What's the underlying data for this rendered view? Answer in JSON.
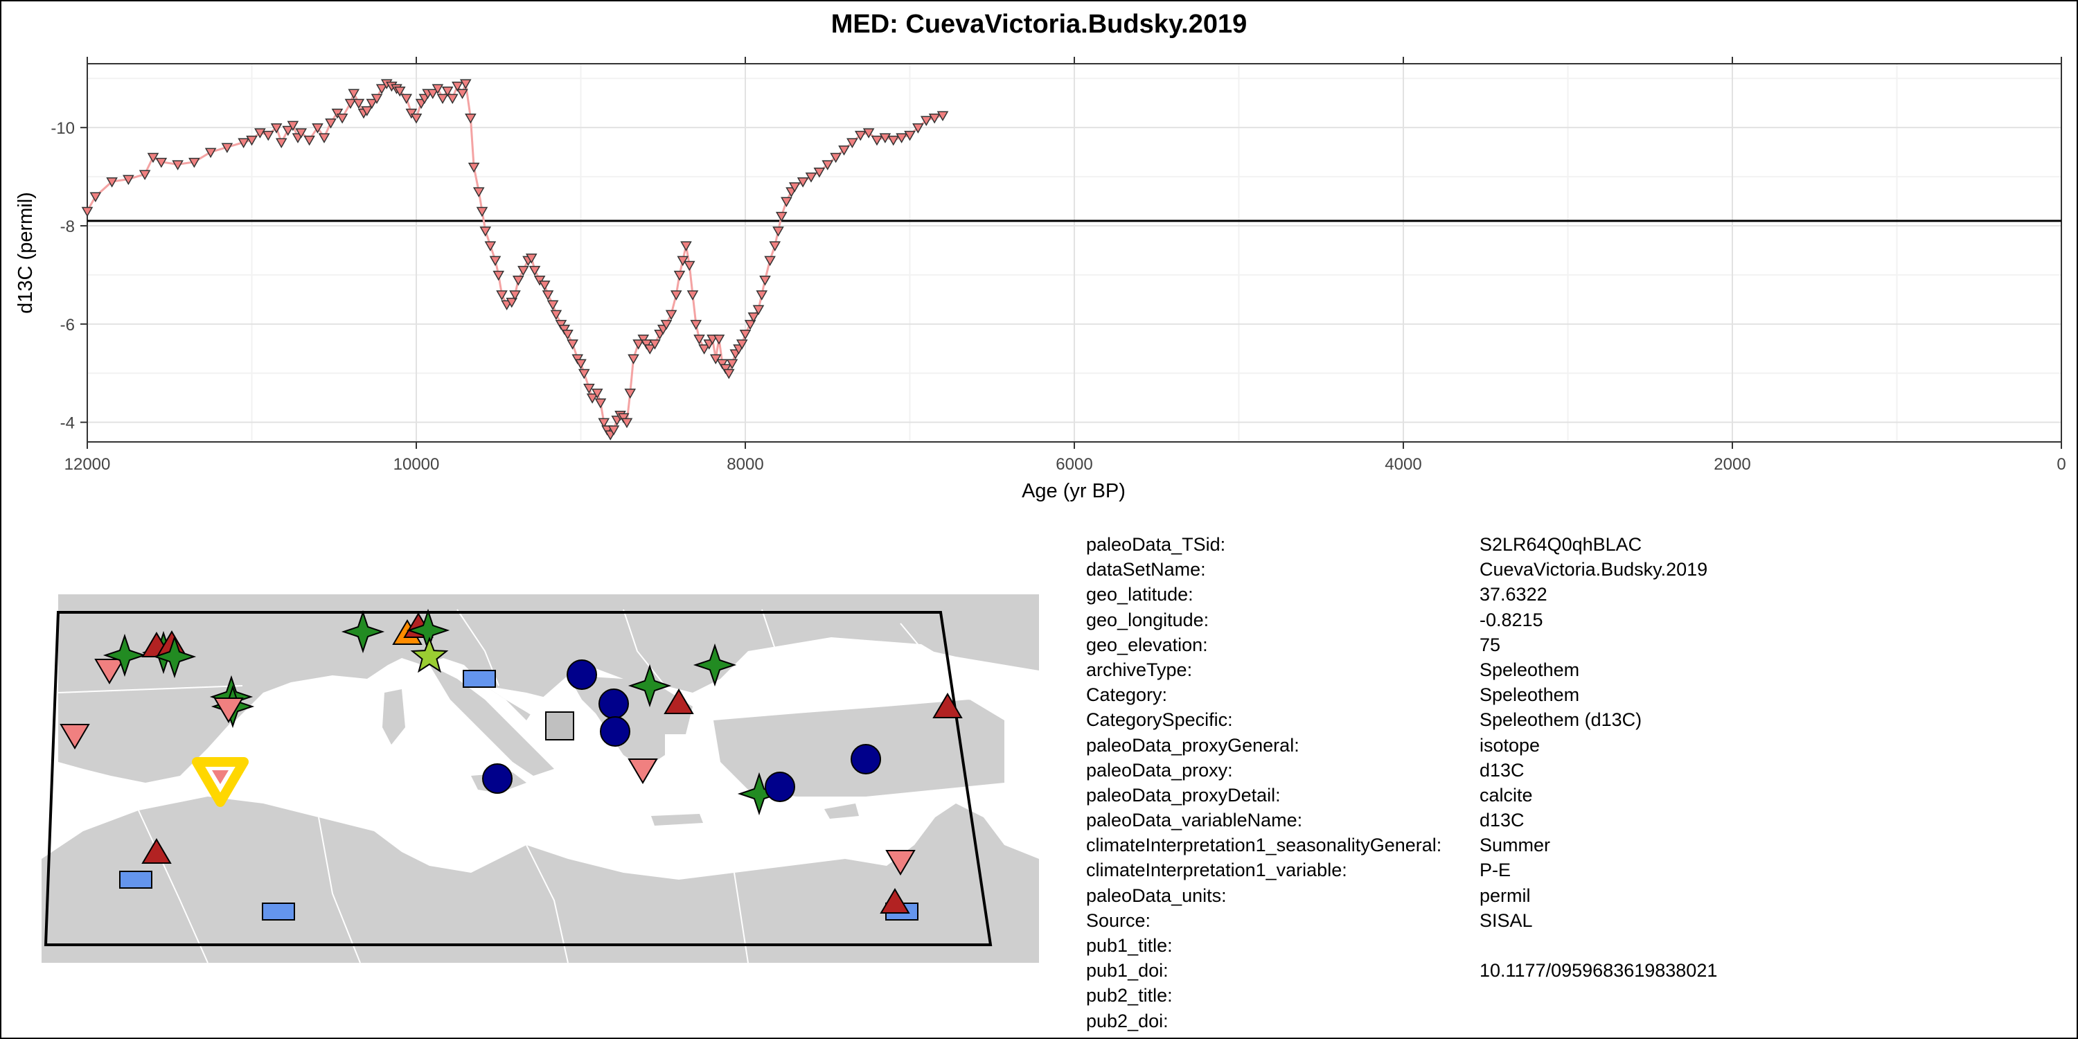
{
  "chart_data": {
    "type": "line",
    "title": "MED: CuevaVictoria.Budsky.2019",
    "xlabel": "Age (yr BP)",
    "ylabel": "d13C (permil)",
    "xlim": [
      12000,
      0
    ],
    "ylim": [
      -3.6,
      -11.3
    ],
    "reversed_y": true,
    "x_ticks": [
      12000,
      10000,
      8000,
      6000,
      4000,
      2000,
      0
    ],
    "y_ticks": [
      -4,
      -6,
      -8,
      -10
    ],
    "reference_line_y": -8.1,
    "series": [
      {
        "color": "#f4a3a3",
        "marker": "triangle-down",
        "marker_fill": "#f08080",
        "points": [
          [
            12000,
            -8.3
          ],
          [
            11950,
            -8.6
          ],
          [
            11850,
            -8.9
          ],
          [
            11750,
            -8.95
          ],
          [
            11650,
            -9.05
          ],
          [
            11600,
            -9.4
          ],
          [
            11550,
            -9.3
          ],
          [
            11450,
            -9.25
          ],
          [
            11350,
            -9.3
          ],
          [
            11250,
            -9.5
          ],
          [
            11150,
            -9.6
          ],
          [
            11050,
            -9.7
          ],
          [
            11000,
            -9.75
          ],
          [
            10950,
            -9.9
          ],
          [
            10900,
            -9.85
          ],
          [
            10850,
            -10.0
          ],
          [
            10820,
            -9.7
          ],
          [
            10780,
            -9.95
          ],
          [
            10750,
            -10.05
          ],
          [
            10720,
            -9.8
          ],
          [
            10700,
            -9.9
          ],
          [
            10650,
            -9.75
          ],
          [
            10600,
            -10.0
          ],
          [
            10560,
            -9.8
          ],
          [
            10520,
            -10.1
          ],
          [
            10480,
            -10.3
          ],
          [
            10450,
            -10.2
          ],
          [
            10400,
            -10.5
          ],
          [
            10380,
            -10.7
          ],
          [
            10350,
            -10.5
          ],
          [
            10320,
            -10.3
          ],
          [
            10300,
            -10.35
          ],
          [
            10270,
            -10.5
          ],
          [
            10240,
            -10.6
          ],
          [
            10210,
            -10.8
          ],
          [
            10180,
            -10.9
          ],
          [
            10150,
            -10.85
          ],
          [
            10120,
            -10.8
          ],
          [
            10100,
            -10.75
          ],
          [
            10060,
            -10.6
          ],
          [
            10030,
            -10.3
          ],
          [
            10000,
            -10.2
          ],
          [
            9970,
            -10.5
          ],
          [
            9950,
            -10.6
          ],
          [
            9930,
            -10.7
          ],
          [
            9900,
            -10.7
          ],
          [
            9870,
            -10.8
          ],
          [
            9840,
            -10.6
          ],
          [
            9810,
            -10.75
          ],
          [
            9780,
            -10.6
          ],
          [
            9750,
            -10.85
          ],
          [
            9720,
            -10.7
          ],
          [
            9700,
            -10.9
          ],
          [
            9670,
            -10.2
          ],
          [
            9650,
            -9.2
          ],
          [
            9620,
            -8.7
          ],
          [
            9600,
            -8.3
          ],
          [
            9580,
            -7.9
          ],
          [
            9550,
            -7.6
          ],
          [
            9520,
            -7.3
          ],
          [
            9500,
            -7.0
          ],
          [
            9480,
            -6.6
          ],
          [
            9450,
            -6.4
          ],
          [
            9420,
            -6.45
          ],
          [
            9400,
            -6.6
          ],
          [
            9380,
            -6.9
          ],
          [
            9350,
            -7.1
          ],
          [
            9320,
            -7.3
          ],
          [
            9300,
            -7.35
          ],
          [
            9280,
            -7.1
          ],
          [
            9250,
            -6.9
          ],
          [
            9220,
            -6.8
          ],
          [
            9200,
            -6.6
          ],
          [
            9170,
            -6.4
          ],
          [
            9150,
            -6.2
          ],
          [
            9120,
            -6.0
          ],
          [
            9100,
            -5.9
          ],
          [
            9080,
            -5.8
          ],
          [
            9050,
            -5.6
          ],
          [
            9020,
            -5.3
          ],
          [
            9000,
            -5.2
          ],
          [
            8980,
            -5.0
          ],
          [
            8950,
            -4.7
          ],
          [
            8930,
            -4.5
          ],
          [
            8900,
            -4.6
          ],
          [
            8880,
            -4.4
          ],
          [
            8860,
            -4.0
          ],
          [
            8840,
            -3.85
          ],
          [
            8820,
            -3.75
          ],
          [
            8800,
            -3.85
          ],
          [
            8780,
            -4.05
          ],
          [
            8760,
            -4.15
          ],
          [
            8740,
            -4.1
          ],
          [
            8720,
            -4.0
          ],
          [
            8700,
            -4.6
          ],
          [
            8680,
            -5.3
          ],
          [
            8650,
            -5.6
          ],
          [
            8620,
            -5.7
          ],
          [
            8600,
            -5.6
          ],
          [
            8580,
            -5.5
          ],
          [
            8550,
            -5.6
          ],
          [
            8520,
            -5.8
          ],
          [
            8500,
            -5.9
          ],
          [
            8480,
            -6.0
          ],
          [
            8450,
            -6.2
          ],
          [
            8420,
            -6.6
          ],
          [
            8400,
            -7.0
          ],
          [
            8380,
            -7.3
          ],
          [
            8360,
            -7.6
          ],
          [
            8340,
            -7.2
          ],
          [
            8320,
            -6.6
          ],
          [
            8300,
            -6.0
          ],
          [
            8280,
            -5.7
          ],
          [
            8250,
            -5.5
          ],
          [
            8220,
            -5.6
          ],
          [
            8200,
            -5.7
          ],
          [
            8180,
            -5.3
          ],
          [
            8160,
            -5.7
          ],
          [
            8140,
            -5.2
          ],
          [
            8120,
            -5.1
          ],
          [
            8100,
            -5.0
          ],
          [
            8080,
            -5.2
          ],
          [
            8060,
            -5.4
          ],
          [
            8040,
            -5.5
          ],
          [
            8020,
            -5.6
          ],
          [
            8000,
            -5.8
          ],
          [
            7970,
            -6.0
          ],
          [
            7950,
            -6.15
          ],
          [
            7920,
            -6.3
          ],
          [
            7900,
            -6.6
          ],
          [
            7880,
            -6.9
          ],
          [
            7850,
            -7.3
          ],
          [
            7820,
            -7.6
          ],
          [
            7800,
            -7.9
          ],
          [
            7780,
            -8.2
          ],
          [
            7750,
            -8.5
          ],
          [
            7720,
            -8.7
          ],
          [
            7700,
            -8.8
          ],
          [
            7650,
            -8.9
          ],
          [
            7600,
            -9.0
          ],
          [
            7550,
            -9.1
          ],
          [
            7500,
            -9.25
          ],
          [
            7450,
            -9.4
          ],
          [
            7400,
            -9.55
          ],
          [
            7350,
            -9.7
          ],
          [
            7300,
            -9.85
          ],
          [
            7250,
            -9.9
          ],
          [
            7200,
            -9.75
          ],
          [
            7150,
            -9.8
          ],
          [
            7100,
            -9.75
          ],
          [
            7050,
            -9.8
          ],
          [
            7000,
            -9.85
          ],
          [
            6950,
            -10.0
          ],
          [
            6900,
            -10.15
          ],
          [
            6850,
            -10.2
          ],
          [
            6800,
            -10.25
          ]
        ]
      }
    ]
  },
  "map": {
    "land_color": "#cfcfcf",
    "border_color": "#ffffff",
    "frame_color": "#000000",
    "markers": [
      {
        "symbol": "triangle-down",
        "color": "#f08080",
        "x": 108,
        "y": 1060
      },
      {
        "symbol": "triangle-down",
        "color": "#f08080",
        "x": 158,
        "y": 966
      },
      {
        "symbol": "star4",
        "color": "#228b22",
        "x": 180,
        "y": 946
      },
      {
        "symbol": "star4",
        "color": "#228b22",
        "x": 236,
        "y": 942
      },
      {
        "symbol": "triangle-up",
        "color": "#b22222",
        "x": 226,
        "y": 934
      },
      {
        "symbol": "triangle-up",
        "color": "#b22222",
        "x": 248,
        "y": 932
      },
      {
        "symbol": "star4",
        "color": "#228b22",
        "x": 252,
        "y": 948
      },
      {
        "symbol": "star4",
        "color": "#228b22",
        "x": 334,
        "y": 1006
      },
      {
        "symbol": "star4",
        "color": "#228b22",
        "x": 336,
        "y": 1020
      },
      {
        "symbol": "triangle-down",
        "color": "#f08080",
        "x": 330,
        "y": 1022
      },
      {
        "symbol": "triangle-down-big",
        "color": "#ffd700",
        "x": 318,
        "y": 1124
      },
      {
        "symbol": "triangle-up",
        "color": "#b22222",
        "x": 226,
        "y": 1232
      },
      {
        "symbol": "rect",
        "color": "#6495ed",
        "x": 196,
        "y": 1270
      },
      {
        "symbol": "rect",
        "color": "#6495ed",
        "x": 402,
        "y": 1316
      },
      {
        "symbol": "star4",
        "color": "#228b22",
        "x": 524,
        "y": 912
      },
      {
        "symbol": "triangle-up",
        "color": "#ff8c00",
        "x": 588,
        "y": 916
      },
      {
        "symbol": "triangle-up",
        "color": "#b22222",
        "x": 604,
        "y": 906
      },
      {
        "symbol": "star4",
        "color": "#228b22",
        "x": 618,
        "y": 910
      },
      {
        "symbol": "star5",
        "color": "#9acd32",
        "x": 620,
        "y": 948
      },
      {
        "symbol": "rect",
        "color": "#6495ed",
        "x": 692,
        "y": 980
      },
      {
        "symbol": "rect",
        "color": "#c0c0c0",
        "x": 808,
        "y": 1048
      },
      {
        "symbol": "circle",
        "color": "#00008b",
        "x": 840,
        "y": 974
      },
      {
        "symbol": "circle",
        "color": "#00008b",
        "x": 886,
        "y": 1016
      },
      {
        "symbol": "circle",
        "color": "#00008b",
        "x": 888,
        "y": 1056
      },
      {
        "symbol": "circle",
        "color": "#00008b",
        "x": 718,
        "y": 1124
      },
      {
        "symbol": "triangle-down",
        "color": "#f08080",
        "x": 928,
        "y": 1110
      },
      {
        "symbol": "star4",
        "color": "#228b22",
        "x": 938,
        "y": 990
      },
      {
        "symbol": "triangle-up",
        "color": "#b22222",
        "x": 980,
        "y": 1016
      },
      {
        "symbol": "star4",
        "color": "#228b22",
        "x": 1032,
        "y": 960
      },
      {
        "symbol": "star4",
        "color": "#228b22",
        "x": 1096,
        "y": 1146
      },
      {
        "symbol": "circle",
        "color": "#00008b",
        "x": 1126,
        "y": 1136
      },
      {
        "symbol": "circle",
        "color": "#00008b",
        "x": 1250,
        "y": 1096
      },
      {
        "symbol": "triangle-up",
        "color": "#b22222",
        "x": 1368,
        "y": 1022
      },
      {
        "symbol": "triangle-down",
        "color": "#f08080",
        "x": 1300,
        "y": 1242
      },
      {
        "symbol": "rect",
        "color": "#6495ed",
        "x": 1302,
        "y": 1316
      },
      {
        "symbol": "triangle-up",
        "color": "#b22222",
        "x": 1292,
        "y": 1304
      }
    ]
  },
  "metadata": [
    {
      "key": "paleoData_TSid:",
      "value": "S2LR64Q0qhBLAC"
    },
    {
      "key": "dataSetName:",
      "value": "CuevaVictoria.Budsky.2019"
    },
    {
      "key": "geo_latitude:",
      "value": "37.6322"
    },
    {
      "key": "geo_longitude:",
      "value": "-0.8215"
    },
    {
      "key": "geo_elevation:",
      "value": "75"
    },
    {
      "key": "archiveType:",
      "value": "Speleothem"
    },
    {
      "key": "Category:",
      "value": "Speleothem"
    },
    {
      "key": "CategorySpecific:",
      "value": "Speleothem (d13C)"
    },
    {
      "key": "paleoData_proxyGeneral:",
      "value": "isotope"
    },
    {
      "key": "paleoData_proxy:",
      "value": "d13C"
    },
    {
      "key": "paleoData_proxyDetail:",
      "value": "calcite"
    },
    {
      "key": "paleoData_variableName:",
      "value": "d13C"
    },
    {
      "key": "climateInterpretation1_seasonalityGeneral:",
      "value": "Summer"
    },
    {
      "key": "climateInterpretation1_variable:",
      "value": "P-E"
    },
    {
      "key": "paleoData_units:",
      "value": "permil"
    },
    {
      "key": "Source:",
      "value": "SISAL"
    },
    {
      "key": "pub1_title:",
      "value": ""
    },
    {
      "key": "pub1_doi:",
      "value": "10.1177/0959683619838021"
    },
    {
      "key": "pub2_title:",
      "value": ""
    },
    {
      "key": "pub2_doi:",
      "value": ""
    }
  ]
}
